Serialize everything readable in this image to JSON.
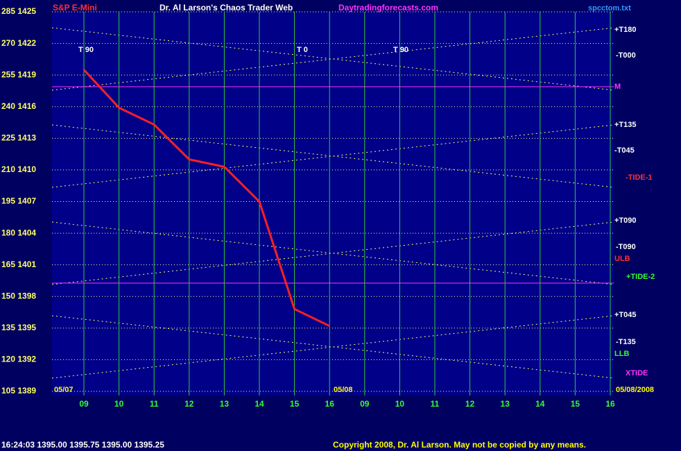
{
  "chart_data": {
    "type": "line",
    "title": "Dr. Al Larson's Chaos Trader Web",
    "instrument": "S&P E-Mini",
    "site": "Daytradingforecasts.com",
    "file": "spcctom.txt",
    "quote_line": "16:24:03  1395.00 1395.75 1395.00 1395.25",
    "copyright": "Copyright 2008, Dr. Al Larson. May not be copied by any means.",
    "categories": [
      "09",
      "10",
      "11",
      "12",
      "13",
      "14",
      "15",
      "16",
      "09",
      "10",
      "11",
      "12",
      "13",
      "14",
      "15",
      "16"
    ],
    "series": [
      {
        "name": "S&P E-Mini",
        "color": "#ff2020",
        "values": [
          1419.5,
          1415.9,
          1414.3,
          1411,
          1410.3,
          1407,
          1396.8,
          1395.2,
          null,
          null,
          null,
          null,
          null,
          null,
          null,
          null
        ]
      }
    ],
    "ylim": [
      1389,
      1425
    ],
    "yticks": [
      {
        "value": 1389,
        "label": "105 1389"
      },
      {
        "value": 1392,
        "label": "120 1392"
      },
      {
        "value": 1395,
        "label": "135 1395"
      },
      {
        "value": 1398,
        "label": "150 1398"
      },
      {
        "value": 1401,
        "label": "165 1401"
      },
      {
        "value": 1404,
        "label": "180 1404"
      },
      {
        "value": 1407,
        "label": "195 1407"
      },
      {
        "value": 1410,
        "label": "210 1410"
      },
      {
        "value": 1413,
        "label": "225 1413"
      },
      {
        "value": 1416,
        "label": "240 1416"
      },
      {
        "value": 1419,
        "label": "255 1419"
      },
      {
        "value": 1422,
        "label": "270 1422"
      },
      {
        "value": 1425,
        "label": "285 1425"
      }
    ],
    "grid": true,
    "annotations": [
      {
        "text": "+T180",
        "color": "#ffffff"
      },
      {
        "text": "-T000",
        "color": "#ffffff"
      },
      {
        "text": "M",
        "color": "#ff33ff"
      },
      {
        "text": "+T135",
        "color": "#ffffff"
      },
      {
        "text": "-T045",
        "color": "#ffffff"
      },
      {
        "text": "-TIDE-1",
        "color": "#ff3030"
      },
      {
        "text": "+T090",
        "color": "#ffffff"
      },
      {
        "text": "-T090",
        "color": "#ffffff"
      },
      {
        "text": "ULB",
        "color": "#ff3030"
      },
      {
        "text": "+TIDE-2",
        "color": "#33ff33"
      },
      {
        "text": "+T045",
        "color": "#ffffff"
      },
      {
        "text": "-T135",
        "color": "#ffffff"
      },
      {
        "text": "LLB",
        "color": "#33ff33"
      },
      {
        "text": "XTIDE",
        "color": "#ff33ff"
      },
      {
        "text": "T 90",
        "color": "#ffffff"
      },
      {
        "text": "T 0",
        "color": "#ffffff"
      },
      {
        "text": "T 90",
        "color": "#ffffff"
      },
      {
        "text": "05/07",
        "color": "#ffff00"
      },
      {
        "text": "05/08",
        "color": "#ffff00"
      },
      {
        "text": "05/08/2008",
        "color": "#ffff00"
      }
    ]
  }
}
